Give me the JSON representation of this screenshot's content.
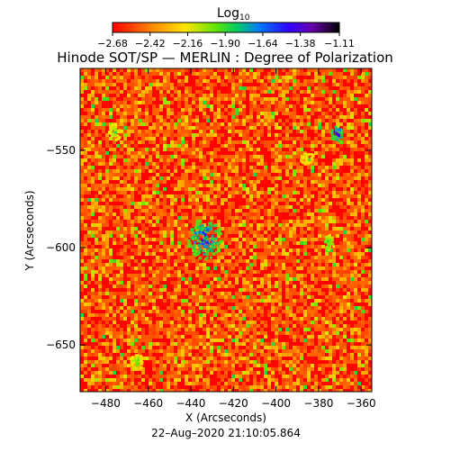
{
  "chart_data": {
    "type": "heatmap",
    "title": "Hinode SOT/SP — MERLIN : Degree of Polarization",
    "xlabel": "X (Arcseconds)",
    "ylabel": "Y (Arcseconds)",
    "xlim": [
      -492,
      -355
    ],
    "ylim": [
      -674,
      -508
    ],
    "xticks": [
      -480,
      -460,
      -440,
      -420,
      -400,
      -380,
      -360
    ],
    "xtick_labels": [
      "−480",
      "−460",
      "−440",
      "−420",
      "−400",
      "−380",
      "−360"
    ],
    "yticks": [
      -550,
      -600,
      -650
    ],
    "ytick_labels": [
      "−550",
      "−600",
      "−650"
    ],
    "colorbar": {
      "label": "Log",
      "label_subscript": "10",
      "colormap": "rainbow (red → yellow → green → blue → violet → black)",
      "range": [
        -2.68,
        -1.11
      ],
      "ticks": [
        -2.68,
        -2.42,
        -2.16,
        -1.9,
        -1.64,
        -1.38,
        -1.11
      ],
      "tick_labels": [
        "−2.68",
        "−2.42",
        "−2.16",
        "−1.90",
        "−1.64",
        "−1.38",
        "−1.11"
      ]
    },
    "field_typical_value": -2.5,
    "high_polarization_features": [
      {
        "x": -434,
        "y": -595,
        "peak_value": -1.3,
        "extent": "large"
      },
      {
        "x": -372,
        "y": -541,
        "peak_value": -1.2,
        "extent": "small"
      },
      {
        "x": -386,
        "y": -553,
        "peak_value": -1.9,
        "extent": "small"
      },
      {
        "x": -376,
        "y": -597,
        "peak_value": -1.7,
        "extent": "small"
      },
      {
        "x": -476,
        "y": -540,
        "peak_value": -1.8,
        "extent": "small"
      },
      {
        "x": -466,
        "y": -658,
        "peak_value": -1.8,
        "extent": "small"
      }
    ],
    "grid": false,
    "legend": "colorbar at top"
  },
  "footer": {
    "timestamp": "22–Aug–2020 21:10:05.864"
  }
}
